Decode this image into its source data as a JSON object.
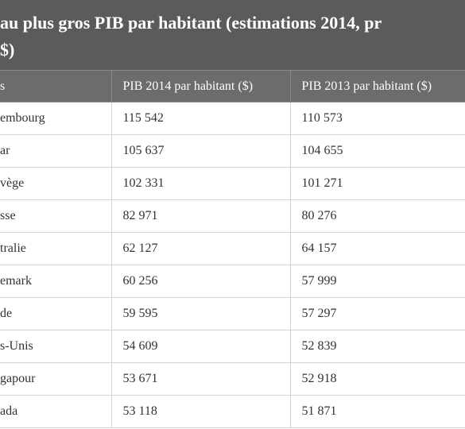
{
  "header": {
    "title_lines": [
      "au plus gros PIB par habitant (estimations 2014, pr",
      "$)"
    ]
  },
  "table": {
    "header": [
      "s",
      "PIB 2014 par habitant ($)",
      "PIB 2013 par habitant ($)"
    ],
    "rows": [
      [
        "embourg",
        "115 542",
        "110 573"
      ],
      [
        "ar",
        "105 637",
        "104 655"
      ],
      [
        "vège",
        "102 331",
        "101 271"
      ],
      [
        "sse",
        "82 971",
        "80 276"
      ],
      [
        "tralie",
        "62 127",
        "64 157"
      ],
      [
        "emark",
        "60 256",
        "57 999"
      ],
      [
        "de",
        "59 595",
        "57 297"
      ],
      [
        "s-Unis",
        "54 609",
        "52 839"
      ],
      [
        "gapour",
        "53 671",
        "52 918"
      ],
      [
        "ada",
        "53 118",
        "51 871"
      ]
    ]
  }
}
